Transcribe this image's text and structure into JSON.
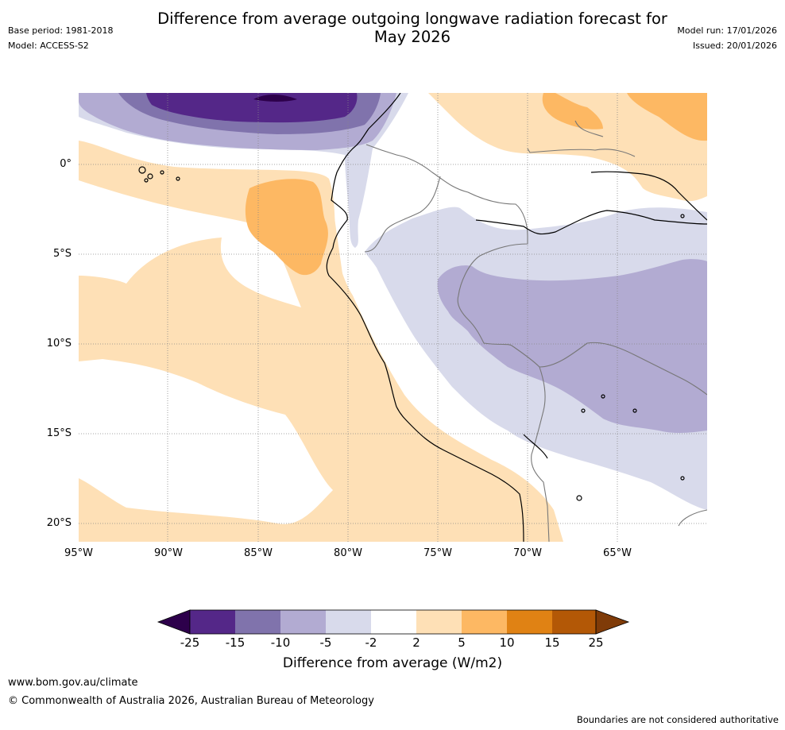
{
  "header": {
    "title_line1": "Difference from average outgoing longwave radiation forecast for",
    "title_line2": "May 2026",
    "base_period": "Base period: 1981-2018",
    "model": "Model: ACCESS-S2",
    "model_run": "Model run: 17/01/2026",
    "issued": "Issued: 20/01/2026"
  },
  "map": {
    "lat_labels": [
      "0°",
      "5°S",
      "10°S",
      "15°S",
      "20°S"
    ],
    "lon_labels": [
      "95°W",
      "90°W",
      "85°W",
      "80°W",
      "75°W",
      "70°W",
      "65°W"
    ]
  },
  "colorbar": {
    "ticks": [
      "-25",
      "-15",
      "-10",
      "-5",
      "-2",
      "2",
      "5",
      "10",
      "15",
      "25"
    ],
    "colors": [
      "#2d004b",
      "#542788",
      "#8073ac",
      "#b2abd2",
      "#d8daeb",
      "#ffffff",
      "#fee0b6",
      "#fdb863",
      "#e08214",
      "#b35806",
      "#7f3b08"
    ],
    "label": "Difference from average (W/m2)"
  },
  "footer": {
    "website": "www.bom.gov.au/climate",
    "copyright": "© Commonwealth of Australia 2026, Australian Bureau of Meteorology",
    "disclaimer": "Boundaries are not considered authoritative"
  }
}
